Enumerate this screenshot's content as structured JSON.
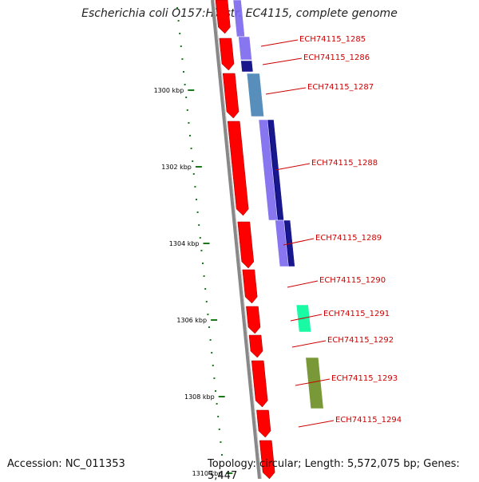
{
  "title": "Escherichia coli O157:H7 str. EC4115, complete genome",
  "accession": "Accession: NC_011353",
  "topology": "Topology: circular",
  "length": "Length: 5,572,075 bp",
  "genes_count": "Genes: 5,447",
  "ticks": [
    "1300 kbp",
    "1302 kbp",
    "1304 kbp",
    "1306 kbp",
    "1308 kbp",
    "1310 kbp"
  ],
  "genes": [
    "ECH74115_1285",
    "ECH74115_1286",
    "ECH74115_1287",
    "ECH74115_1288",
    "ECH74115_1289",
    "ECH74115_1290",
    "ECH74115_1291",
    "ECH74115_1292",
    "ECH74115_1293",
    "ECH74115_1294"
  ],
  "colors": {
    "gene_arrow": "#ff0000",
    "label": "#cc0000",
    "backbone": "#888888",
    "tick": "#1a7a1a",
    "feature_purple": "#7b68ee",
    "feature_navy": "#000080",
    "feature_steelblue": "#4682b4",
    "feature_aquamarine": "#00fa9a",
    "feature_olive": "#6b8e23"
  }
}
